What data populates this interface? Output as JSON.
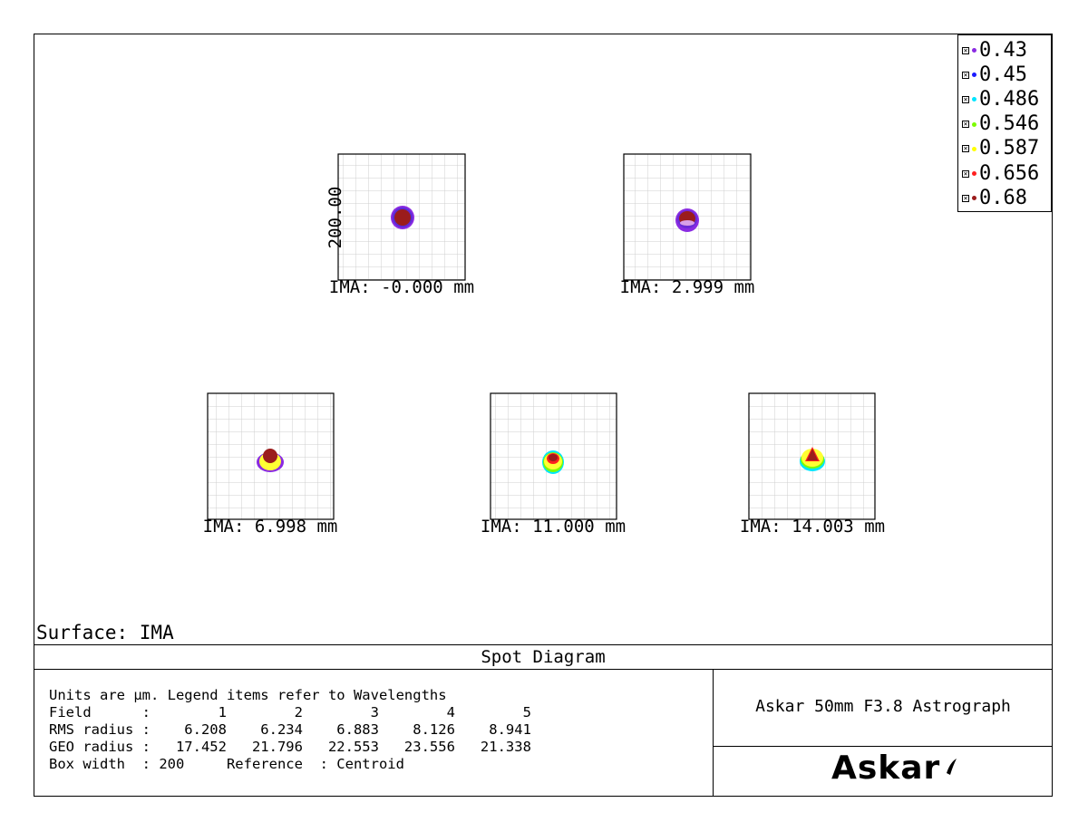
{
  "legend": {
    "items": [
      {
        "label": "0.43",
        "color": "#8a2be2"
      },
      {
        "label": "0.45",
        "color": "#1a1aff"
      },
      {
        "label": "0.486",
        "color": "#00e5ff"
      },
      {
        "label": "0.546",
        "color": "#7cfc00"
      },
      {
        "label": "0.587",
        "color": "#ffff00"
      },
      {
        "label": "0.656",
        "color": "#ff2020"
      },
      {
        "label": "0.68",
        "color": "#9b1c1c"
      }
    ]
  },
  "plots": [
    {
      "field": "1",
      "ima_label": "IMA: -0.000 mm",
      "scale_label": "200.00"
    },
    {
      "field": "2",
      "ima_label": "IMA: 2.999 mm"
    },
    {
      "field": "3",
      "ima_label": "IMA: 6.998 mm"
    },
    {
      "field": "4",
      "ima_label": "IMA: 11.000 mm"
    },
    {
      "field": "5",
      "ima_label": "IMA: 14.003 mm"
    }
  ],
  "surface_label": "Surface: IMA",
  "diagram_title": "Spot Diagram",
  "info": {
    "line1": "Units are µm. Legend items refer to Wavelengths",
    "field_row": "Field      :        1        2        3        4        5",
    "rms_row": "RMS radius :    6.208    6.234    6.883    8.126    8.941",
    "geo_row": "GEO radius :   17.452   21.796   22.553   23.556   21.338",
    "box_row": "Box width  : 200     Reference  : Centroid"
  },
  "system_name": "Askar 50mm F3.8 Astrograph",
  "logo_text": "Askar"
}
